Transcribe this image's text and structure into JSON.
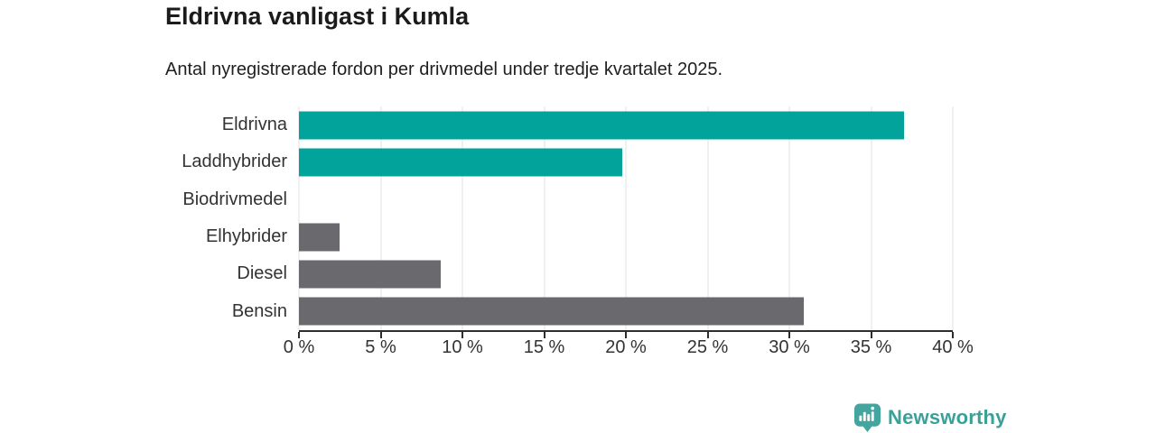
{
  "chart_data": {
    "type": "bar",
    "orientation": "horizontal",
    "title": "Eldrivna vanligast i Kumla",
    "subtitle": "Antal nyregistrerade fordon per drivmedel under tredje kvartalet 2025.",
    "categories": [
      "Eldrivna",
      "Laddhybrider",
      "Biodrivmedel",
      "Elhybrider",
      "Diesel",
      "Bensin"
    ],
    "values": [
      37.0,
      19.8,
      0,
      2.5,
      8.7,
      30.9
    ],
    "unit": "%",
    "xlim": [
      0,
      40
    ],
    "xtick_values": [
      0,
      5,
      10,
      15,
      20,
      25,
      30,
      35,
      40
    ],
    "xtick_labels": [
      "0 %",
      "5 %",
      "10 %",
      "15 %",
      "20 %",
      "25 %",
      "30 %",
      "35 %",
      "40 %"
    ],
    "bar_colors": [
      "#02A39A",
      "#02A39A",
      "#6A6A6E",
      "#6A6A6E",
      "#6A6A6E",
      "#6A6A6E"
    ],
    "grid": true,
    "gridline_color": "#e2e2e2",
    "axis_color": "#2e2e2e",
    "legend": "none",
    "xlabel": "",
    "ylabel": ""
  },
  "branding": {
    "logo_text": "Newsworthy",
    "logo_icon": "newsworthy-chart-bubble-icon",
    "brand_color": "#3AA098"
  }
}
